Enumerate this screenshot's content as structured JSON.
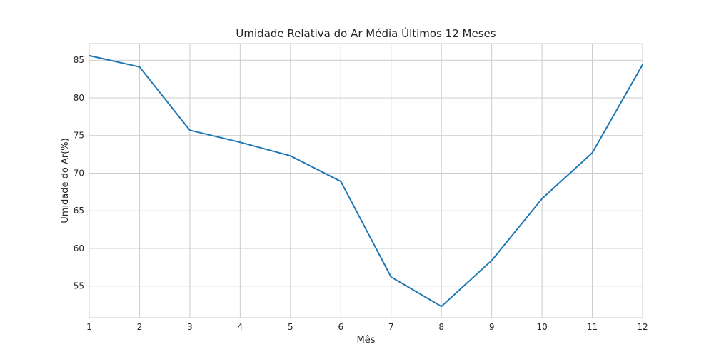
{
  "chart_data": {
    "type": "line",
    "title": "Umidade Relativa do Ar Média Últimos 12 Meses",
    "xlabel": "Mês",
    "ylabel": "Umidade do Ar(%)",
    "x": [
      1,
      2,
      3,
      4,
      5,
      6,
      7,
      8,
      9,
      10,
      11,
      12
    ],
    "series": [
      {
        "values": [
          85.6,
          84.1,
          75.7,
          74.1,
          72.3,
          68.9,
          56.2,
          52.3,
          58.4,
          66.6,
          72.7,
          84.4
        ]
      }
    ],
    "xlim": [
      1,
      12
    ],
    "ylim": [
      50.8,
      87.2
    ],
    "xticks": [
      1,
      2,
      3,
      4,
      5,
      6,
      7,
      8,
      9,
      10,
      11,
      12
    ],
    "yticks": [
      55,
      60,
      65,
      70,
      75,
      80,
      85
    ],
    "grid": true,
    "legend": "none",
    "colors": {
      "line": "#1f77b4"
    }
  }
}
